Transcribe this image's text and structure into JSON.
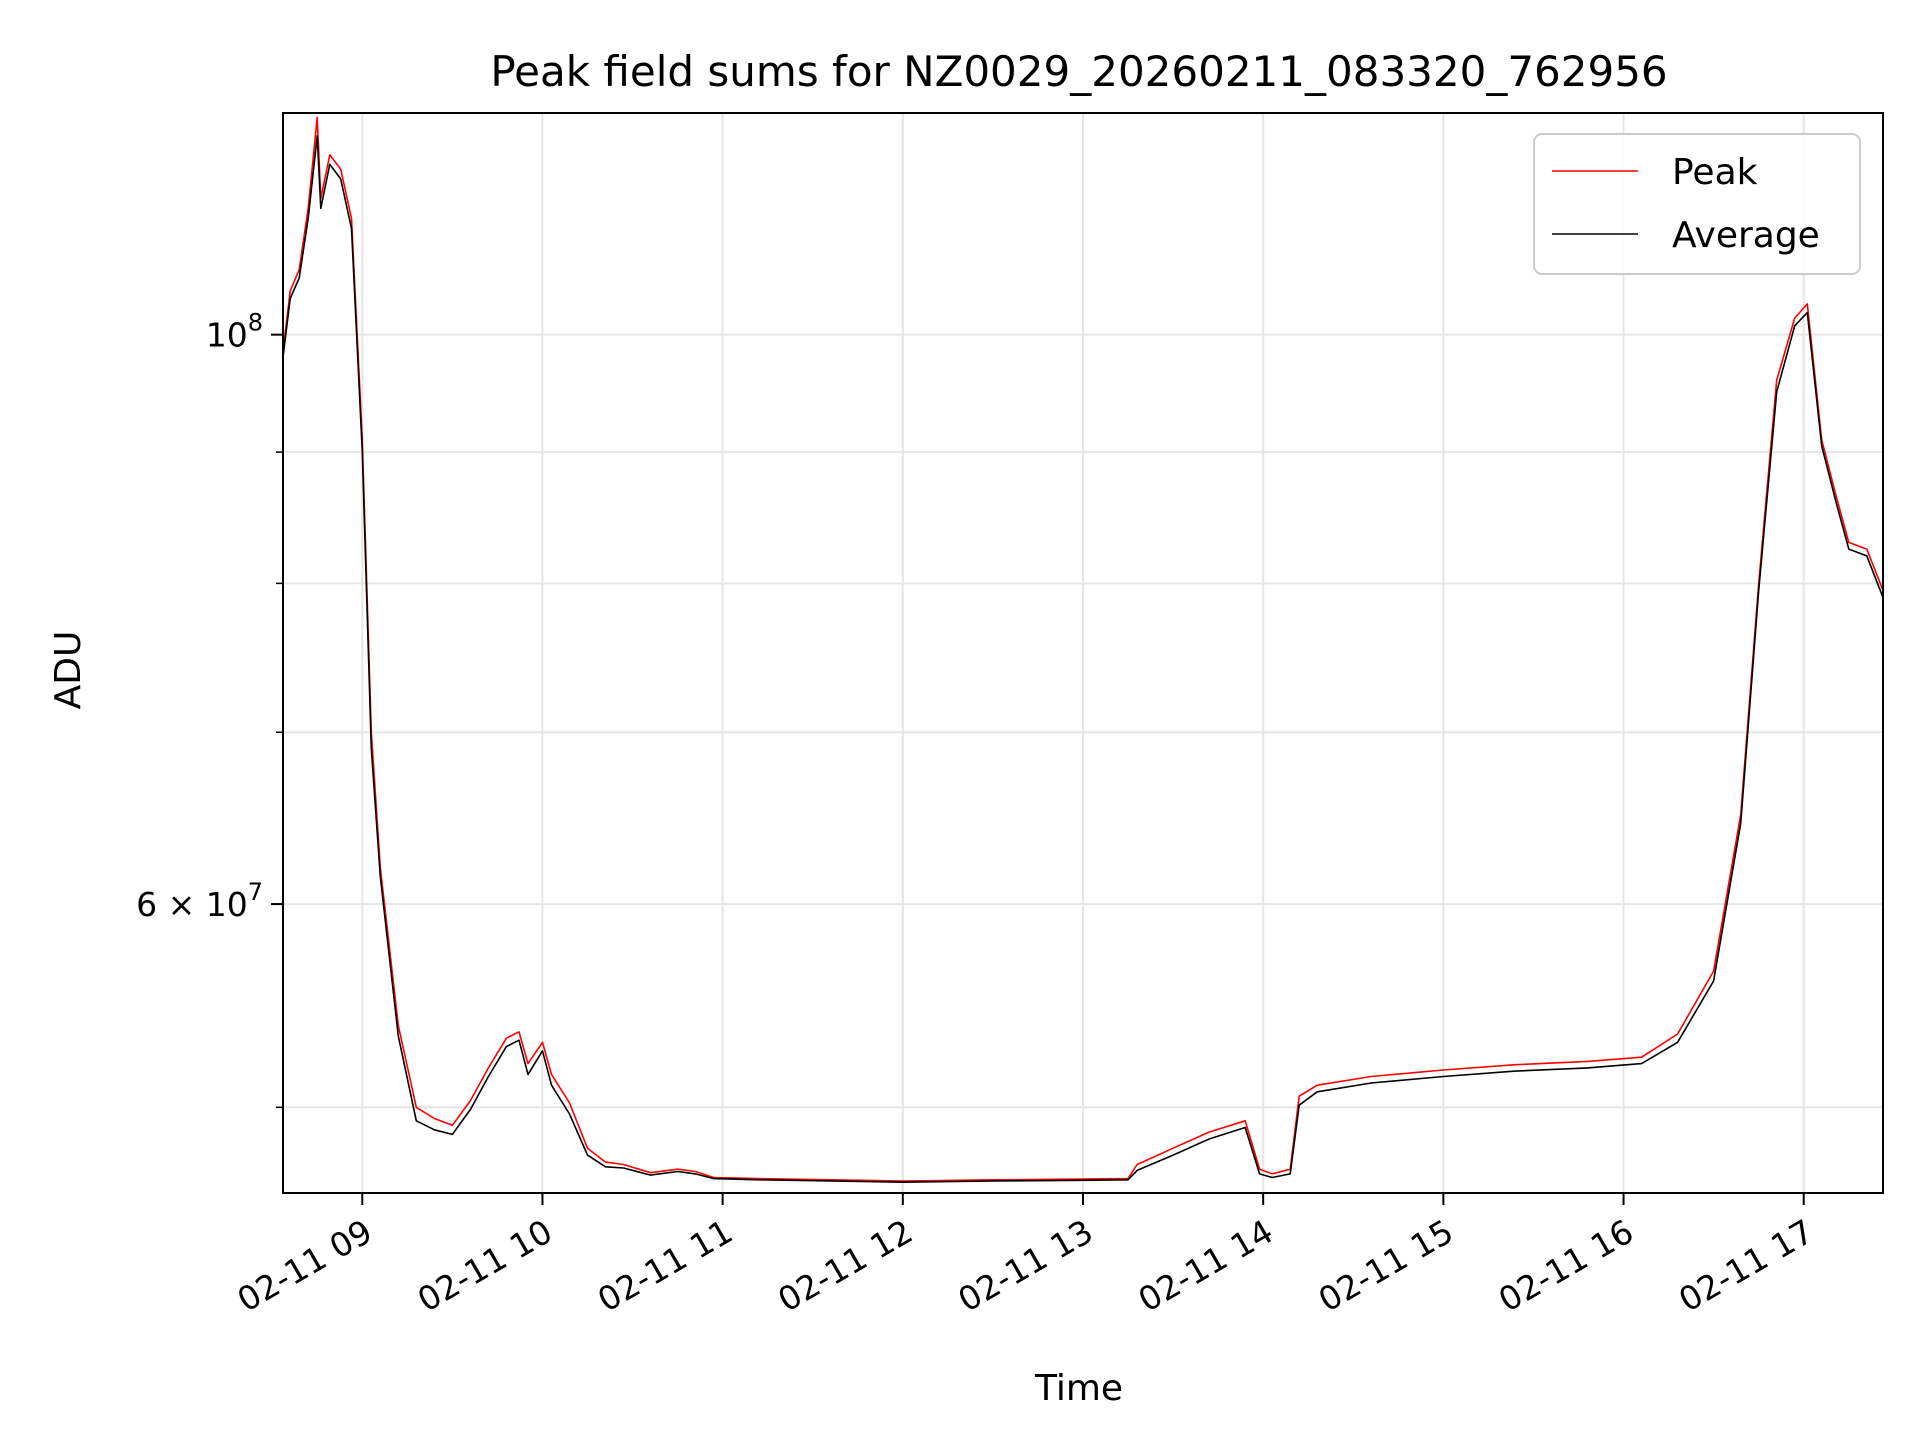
{
  "chart_data": {
    "type": "line",
    "title": "Peak field sums for NZ0029_20260211_083320_762956",
    "xlabel": "Time",
    "ylabel": "ADU",
    "yscale": "log",
    "ylim": [
      46300000,
      122000000
    ],
    "xlim": [
      8.56,
      17.44
    ],
    "grid": true,
    "legend_position": "top-right",
    "x_ticks": [
      {
        "value": 9,
        "label": "02-11 09"
      },
      {
        "value": 10,
        "label": "02-11 10"
      },
      {
        "value": 11,
        "label": "02-11 11"
      },
      {
        "value": 12,
        "label": "02-11 12"
      },
      {
        "value": 13,
        "label": "02-11 13"
      },
      {
        "value": 14,
        "label": "02-11 14"
      },
      {
        "value": 15,
        "label": "02-11 15"
      },
      {
        "value": 16,
        "label": "02-11 16"
      },
      {
        "value": 17,
        "label": "02-11 17"
      }
    ],
    "y_major_ticks": [
      {
        "value": 100000000,
        "base": "10",
        "exp": "8"
      },
      {
        "value": 60000000,
        "base": "6 × 10",
        "exp": "7"
      }
    ],
    "y_minor_ticks": [
      50000000,
      70000000,
      80000000,
      90000000
    ],
    "series": [
      {
        "name": "Peak",
        "color": "#ff0000",
        "x": [
          8.56,
          8.6,
          8.65,
          8.7,
          8.75,
          8.77,
          8.82,
          8.88,
          8.94,
          9.0,
          9.05,
          9.1,
          9.2,
          9.3,
          9.4,
          9.5,
          9.6,
          9.7,
          9.8,
          9.87,
          9.92,
          10.0,
          10.05,
          10.15,
          10.25,
          10.35,
          10.45,
          10.6,
          10.75,
          10.85,
          10.95,
          11.2,
          11.6,
          12.0,
          12.5,
          13.0,
          13.25,
          13.3,
          13.5,
          13.7,
          13.9,
          13.98,
          14.05,
          14.15,
          14.2,
          14.3,
          14.6,
          15.0,
          15.4,
          15.8,
          16.1,
          16.3,
          16.5,
          16.65,
          16.75,
          16.85,
          16.95,
          17.02,
          17.1,
          17.18,
          17.25,
          17.35,
          17.44
        ],
        "values": [
          98500000,
          104000000,
          106000000,
          112000000,
          121500000,
          113000000,
          117500000,
          116000000,
          111000000,
          91000000,
          70000000,
          62000000,
          53800000,
          50000000,
          49500000,
          49200000,
          50300000,
          51800000,
          53200000,
          53500000,
          52000000,
          53000000,
          51500000,
          50200000,
          48200000,
          47600000,
          47500000,
          47150000,
          47300000,
          47200000,
          46950000,
          46900000,
          46850000,
          46800000,
          46850000,
          46880000,
          46900000,
          47500000,
          48200000,
          48900000,
          49400000,
          47300000,
          47100000,
          47300000,
          50500000,
          51000000,
          51400000,
          51700000,
          51950000,
          52100000,
          52300000,
          53400000,
          56500000,
          65000000,
          80000000,
          96000000,
          101500000,
          102800000,
          91000000,
          86500000,
          83000000,
          82500000,
          79500000
        ]
      },
      {
        "name": "Average",
        "color": "#000000",
        "x": [
          8.56,
          8.6,
          8.65,
          8.7,
          8.75,
          8.77,
          8.82,
          8.88,
          8.94,
          9.0,
          9.05,
          9.1,
          9.2,
          9.3,
          9.4,
          9.5,
          9.6,
          9.7,
          9.8,
          9.87,
          9.92,
          10.0,
          10.05,
          10.15,
          10.25,
          10.35,
          10.45,
          10.6,
          10.75,
          10.85,
          10.95,
          11.2,
          11.6,
          12.0,
          12.5,
          13.0,
          13.25,
          13.3,
          13.5,
          13.7,
          13.9,
          13.98,
          14.05,
          14.15,
          14.2,
          14.3,
          14.6,
          15.0,
          15.4,
          15.8,
          16.1,
          16.3,
          16.5,
          16.65,
          16.75,
          16.85,
          16.95,
          17.02,
          17.1,
          17.18,
          17.25,
          17.35,
          17.44
        ],
        "values": [
          98000000,
          103300000,
          105200000,
          111000000,
          119500000,
          112000000,
          116500000,
          115000000,
          110000000,
          90000000,
          69000000,
          61500000,
          53300000,
          49400000,
          49000000,
          48800000,
          49900000,
          51400000,
          52800000,
          53100000,
          51500000,
          52600000,
          51000000,
          49700000,
          47900000,
          47400000,
          47350000,
          47050000,
          47200000,
          47100000,
          46900000,
          46850000,
          46800000,
          46750000,
          46800000,
          46830000,
          46850000,
          47250000,
          47900000,
          48600000,
          49100000,
          47100000,
          46950000,
          47100000,
          50100000,
          50700000,
          51100000,
          51400000,
          51650000,
          51800000,
          52000000,
          53000000,
          56000000,
          64500000,
          79500000,
          95000000,
          100800000,
          102000000,
          90500000,
          86000000,
          82500000,
          82000000,
          79000000
        ]
      }
    ]
  }
}
